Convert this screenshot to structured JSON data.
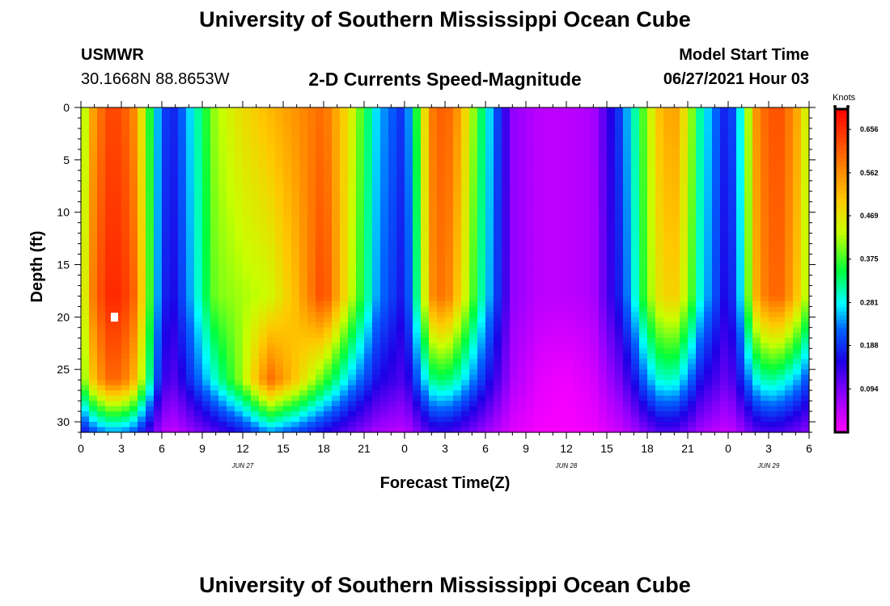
{
  "chart_data": {
    "type": "heatmap",
    "title": "University of Southern Mississippi Ocean Cube",
    "footer_title": "University of Southern Mississippi Ocean Cube",
    "station_name": "USMWR",
    "station_coords": "30.1668N  88.8653W",
    "subtitle": "2-D Currents Speed-Magnitude",
    "model_label": "Model Start Time",
    "model_time": "06/27/2021 Hour 03",
    "xlabel": "Forecast Time(Z)",
    "ylabel": "Depth (ft)",
    "x_hours_range": [
      0,
      54
    ],
    "y_range": [
      0,
      31
    ],
    "x_tick_labels": [
      "0",
      "3",
      "6",
      "9",
      "12",
      "15",
      "18",
      "21",
      "0",
      "3",
      "6",
      "9",
      "12",
      "15",
      "18",
      "21",
      "0",
      "3",
      "6"
    ],
    "y_ticks": [
      0,
      5,
      10,
      15,
      20,
      25,
      30
    ],
    "y_tick_labels": [
      "0",
      "5",
      "10",
      "15",
      "20",
      "25",
      "30"
    ],
    "date_labels": [
      {
        "hour": 12,
        "text": "JUN 27"
      },
      {
        "hour": 36,
        "text": "JUN 28"
      },
      {
        "hour": 51,
        "text": "JUN 29"
      }
    ],
    "colorbar": {
      "unit": "Knots",
      "min": 0.0,
      "max": 0.7,
      "tick_values": [
        0.656,
        0.562,
        0.469,
        0.375,
        0.281,
        0.188,
        0.094
      ],
      "tick_labels": [
        "0.656",
        "0.562",
        "0.469",
        "0.375",
        "0.281",
        "0.188",
        "0.094"
      ]
    },
    "speed_profile_by_hour": {
      "hours": [
        0,
        1,
        2,
        3,
        4,
        5,
        6,
        7,
        8,
        10,
        12,
        14,
        16,
        18,
        20,
        22,
        24,
        25,
        26,
        27,
        28,
        30,
        32,
        34,
        36,
        38,
        40,
        41,
        42,
        43,
        44,
        45,
        46,
        48,
        49,
        50,
        51,
        52,
        53,
        54
      ],
      "surface": [
        0.38,
        0.56,
        0.63,
        0.63,
        0.56,
        0.38,
        0.2,
        0.18,
        0.26,
        0.42,
        0.48,
        0.52,
        0.56,
        0.6,
        0.46,
        0.26,
        0.18,
        0.38,
        0.58,
        0.62,
        0.55,
        0.3,
        0.08,
        0.05,
        0.05,
        0.06,
        0.2,
        0.3,
        0.42,
        0.52,
        0.55,
        0.45,
        0.3,
        0.16,
        0.3,
        0.55,
        0.62,
        0.62,
        0.55,
        0.42
      ],
      "mid": [
        0.4,
        0.6,
        0.66,
        0.66,
        0.6,
        0.4,
        0.18,
        0.16,
        0.24,
        0.4,
        0.42,
        0.44,
        0.52,
        0.64,
        0.44,
        0.24,
        0.16,
        0.34,
        0.56,
        0.6,
        0.5,
        0.28,
        0.08,
        0.05,
        0.05,
        0.06,
        0.18,
        0.28,
        0.4,
        0.48,
        0.5,
        0.42,
        0.28,
        0.14,
        0.28,
        0.52,
        0.6,
        0.6,
        0.52,
        0.4
      ],
      "deep": [
        0.38,
        0.52,
        0.6,
        0.6,
        0.52,
        0.34,
        0.14,
        0.12,
        0.18,
        0.3,
        0.42,
        0.6,
        0.5,
        0.38,
        0.26,
        0.16,
        0.12,
        0.22,
        0.32,
        0.34,
        0.3,
        0.18,
        0.06,
        0.02,
        0.01,
        0.03,
        0.1,
        0.16,
        0.24,
        0.3,
        0.3,
        0.24,
        0.16,
        0.1,
        0.18,
        0.28,
        0.32,
        0.3,
        0.26,
        0.2
      ]
    }
  }
}
